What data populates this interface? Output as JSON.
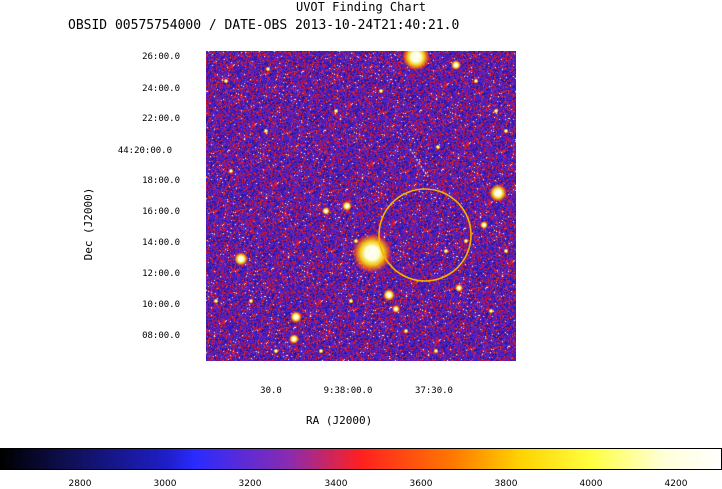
{
  "title": "UVOT Finding Chart",
  "subtitle": "OBSID 00575754000 / DATE-OBS 2013-10-24T21:40:21.0",
  "dec_axis": {
    "label": "Dec (J2000)",
    "ticks": [
      "26:00.0",
      "24:00.0",
      "22:00.0",
      "44:20:00.0",
      "18:00.0",
      "16:00.0",
      "14:00.0",
      "12:00.0",
      "10:00.0",
      "08:00.0"
    ]
  },
  "ra_axis": {
    "label": "RA (J2000)",
    "ticks": [
      "30.0",
      "9:38:00.0",
      "37:30.0"
    ]
  },
  "colorbar": {
    "ticks": [
      "2800",
      "3000",
      "3200",
      "3400",
      "3600",
      "3800",
      "4000",
      "4200"
    ]
  },
  "colors": {
    "circle": "#f0b400",
    "background_noise": "#2a1fb0",
    "hot_noise": "#e02020"
  }
}
